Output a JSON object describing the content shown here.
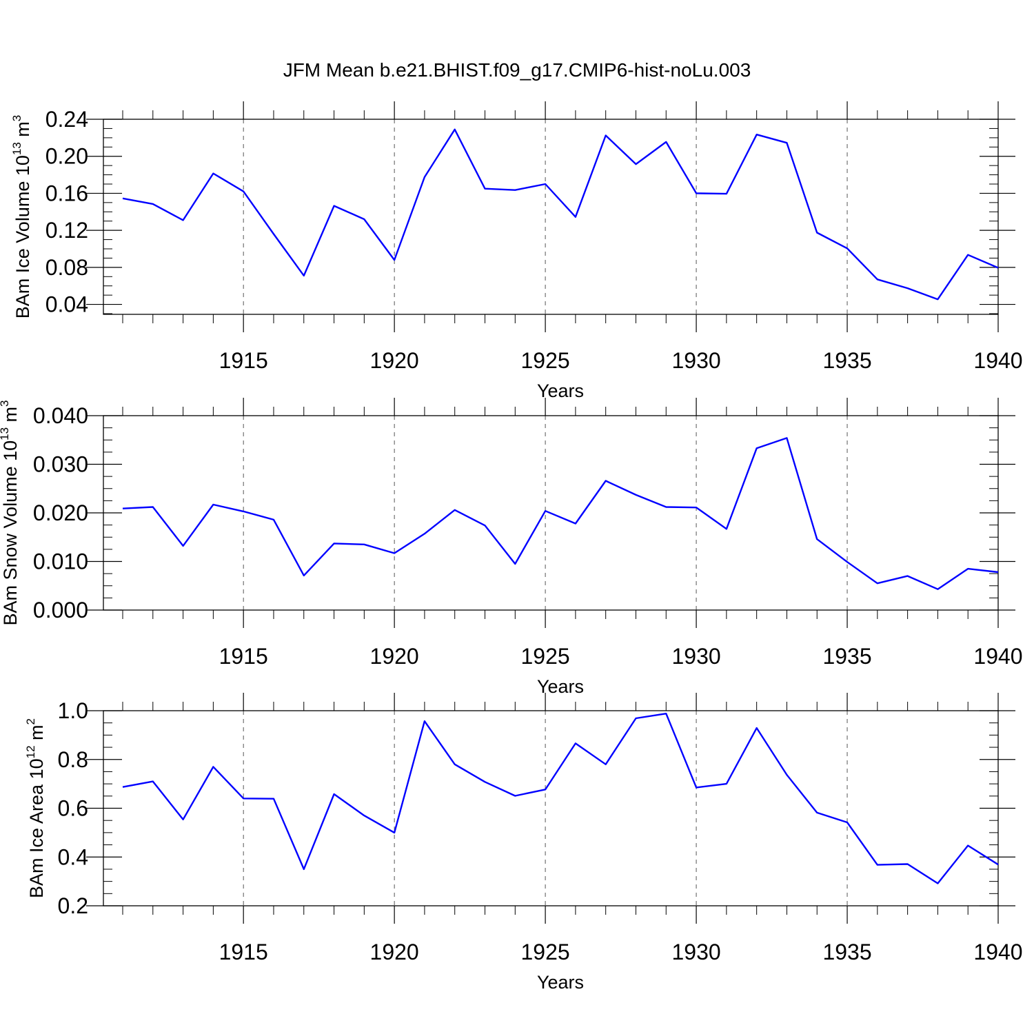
{
  "page_title": "JFM Mean b.e21.BHIST.f09_g17.CMIP6-hist-noLu.003",
  "colors": {
    "line": "#0000ff",
    "axis": "#000000",
    "grid": "#555555"
  },
  "chart_data": [
    {
      "type": "line",
      "title": "",
      "xlabel": "Years",
      "ylabel": "BAm Ice Volume 10",
      "ylabel_exponent": "13",
      "ylabel_unit": "m",
      "ylabel_unit_exponent": "3",
      "xlim": [
        1911,
        1940
      ],
      "ylim": [
        0.03,
        0.24
      ],
      "x_ticks": [
        1915,
        1920,
        1925,
        1930,
        1935,
        1940
      ],
      "y_ticks": [
        0.04,
        0.08,
        0.12,
        0.16,
        0.2,
        0.24
      ],
      "y_tick_labels": [
        "0.04",
        "0.08",
        "0.12",
        "0.16",
        "0.20",
        "0.24"
      ],
      "grid": "vertical dashed at major x ticks",
      "x": [
        1911,
        1912,
        1913,
        1914,
        1915,
        1916,
        1917,
        1918,
        1919,
        1920,
        1921,
        1922,
        1923,
        1924,
        1925,
        1926,
        1927,
        1928,
        1929,
        1930,
        1931,
        1932,
        1933,
        1934,
        1935,
        1936,
        1937,
        1938,
        1939,
        1940
      ],
      "values": [
        0.1545,
        0.1485,
        0.131,
        0.1815,
        0.162,
        0.116,
        0.071,
        0.1465,
        0.132,
        0.088,
        0.1775,
        0.229,
        0.165,
        0.1635,
        0.17,
        0.1345,
        0.2225,
        0.1915,
        0.2155,
        0.16,
        0.1595,
        0.2235,
        0.2145,
        0.1175,
        0.1005,
        0.067,
        0.0575,
        0.0455,
        0.0935,
        0.0795
      ]
    },
    {
      "type": "line",
      "title": "",
      "xlabel": "Years",
      "ylabel": "BAm Snow Volume 10",
      "ylabel_exponent": "13",
      "ylabel_unit": "m",
      "ylabel_unit_exponent": "3",
      "xlim": [
        1911,
        1940
      ],
      "ylim": [
        0.0,
        0.04
      ],
      "x_ticks": [
        1915,
        1920,
        1925,
        1930,
        1935,
        1940
      ],
      "y_ticks": [
        0.0,
        0.01,
        0.02,
        0.03,
        0.04
      ],
      "y_tick_labels": [
        "0.000",
        "0.010",
        "0.020",
        "0.030",
        "0.040"
      ],
      "grid": "vertical dashed at major x ticks",
      "x": [
        1911,
        1912,
        1913,
        1914,
        1915,
        1916,
        1917,
        1918,
        1919,
        1920,
        1921,
        1922,
        1923,
        1924,
        1925,
        1926,
        1927,
        1928,
        1929,
        1930,
        1931,
        1932,
        1933,
        1934,
        1935,
        1936,
        1937,
        1938,
        1939,
        1940
      ],
      "values": [
        0.0209,
        0.0212,
        0.0132,
        0.0217,
        0.0203,
        0.0186,
        0.0071,
        0.0137,
        0.0135,
        0.0117,
        0.0157,
        0.0206,
        0.0174,
        0.0095,
        0.0204,
        0.0178,
        0.0266,
        0.0237,
        0.0212,
        0.0211,
        0.0167,
        0.0333,
        0.0354,
        0.0146,
        0.0099,
        0.0055,
        0.007,
        0.0043,
        0.0085,
        0.0078
      ]
    },
    {
      "type": "line",
      "title": "",
      "xlabel": "Years",
      "ylabel": "BAm Ice Area 10",
      "ylabel_exponent": "12",
      "ylabel_unit": "m",
      "ylabel_unit_exponent": "2",
      "xlim": [
        1911,
        1940
      ],
      "ylim": [
        0.2,
        1.0
      ],
      "x_ticks": [
        1915,
        1920,
        1925,
        1930,
        1935,
        1940
      ],
      "y_ticks": [
        0.2,
        0.4,
        0.6,
        0.8,
        1.0
      ],
      "y_tick_labels": [
        "0.2",
        "0.4",
        "0.6",
        "0.8",
        "1.0"
      ],
      "grid": "vertical dashed at major x ticks",
      "x": [
        1911,
        1912,
        1913,
        1914,
        1915,
        1916,
        1917,
        1918,
        1919,
        1920,
        1921,
        1922,
        1923,
        1924,
        1925,
        1926,
        1927,
        1928,
        1929,
        1930,
        1931,
        1932,
        1933,
        1934,
        1935,
        1936,
        1937,
        1938,
        1939,
        1940
      ],
      "values": [
        0.687,
        0.71,
        0.554,
        0.77,
        0.64,
        0.639,
        0.35,
        0.658,
        0.57,
        0.5,
        0.957,
        0.78,
        0.708,
        0.651,
        0.677,
        0.866,
        0.78,
        0.969,
        0.988,
        0.685,
        0.7,
        0.929,
        0.737,
        0.582,
        0.542,
        0.368,
        0.371,
        0.292,
        0.447,
        0.369
      ]
    }
  ]
}
